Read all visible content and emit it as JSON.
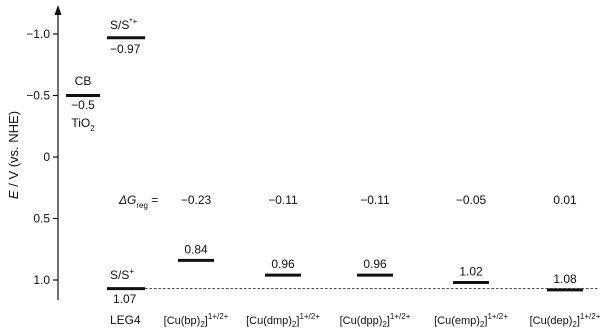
{
  "axis": {
    "ylabel_italic": "E",
    "ylabel_rest": " / V (vs. NHE)",
    "ticks": [
      {
        "value": -1.0,
        "label": "−1.0"
      },
      {
        "value": -0.5,
        "label": "−0.5"
      },
      {
        "value": 0,
        "label": "0"
      },
      {
        "value": 0.5,
        "label": "0.5"
      },
      {
        "value": 1.0,
        "label": "1.0"
      }
    ]
  },
  "levels": {
    "tio2_cb": {
      "value": -0.5,
      "top_label": "CB",
      "value_label": "−0.5",
      "name_main": "TiO",
      "name_sub": "2"
    },
    "dye_excited": {
      "value": -0.97,
      "label_main": "S/S",
      "label_sup": "*+",
      "value_label": "−0.97"
    },
    "dye_ground": {
      "value": 1.07,
      "label_main": "S/S",
      "label_sup": "+",
      "value_label": "1.07",
      "name": "LEG4"
    }
  },
  "delta_g": {
    "label_italic": "ΔG",
    "label_sub": "reg",
    "label_eq": " ="
  },
  "mediators": [
    {
      "main": "[Cu(bp)",
      "sub": "2",
      "close": "]",
      "sup": "1+/2+",
      "potential": 0.84,
      "potential_label": "0.84",
      "dg_label": "−0.23"
    },
    {
      "main": "[Cu(dmp)",
      "sub": "2",
      "close": "]",
      "sup": "1+/2+",
      "potential": 0.96,
      "potential_label": "0.96",
      "dg_label": "−0.11"
    },
    {
      "main": "[Cu(dpp)",
      "sub": "2",
      "close": "]",
      "sup": "1+/2+",
      "potential": 0.96,
      "potential_label": "0.96",
      "dg_label": "−0.11"
    },
    {
      "main": "[Cu(emp)",
      "sub": "2",
      "close": "]",
      "sup": "1+/2+",
      "potential": 1.02,
      "potential_label": "1.02",
      "dg_label": "−0.05"
    },
    {
      "main": "[Cu(dep)",
      "sub": "2",
      "close": "]",
      "sup": "1+/2+",
      "potential": 1.08,
      "potential_label": "1.08",
      "dg_label": "0.01"
    }
  ]
}
